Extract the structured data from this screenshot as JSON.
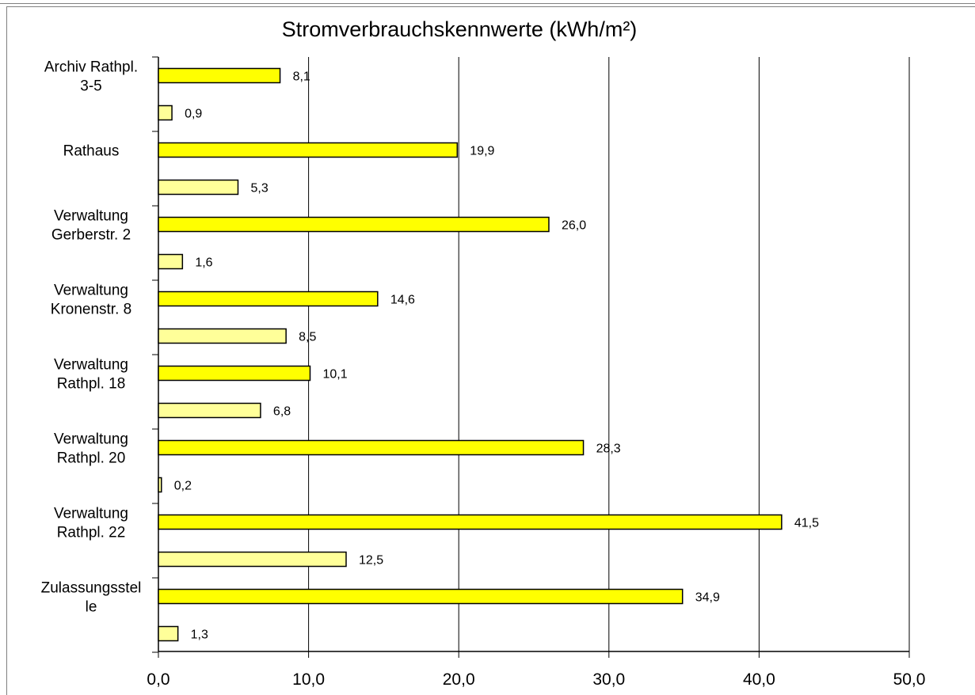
{
  "chart_data": {
    "type": "bar",
    "orientation": "horizontal",
    "title": "Stromverbrauchskennwerte (kWh/m²)",
    "xlim": [
      0,
      50
    ],
    "xticks": [
      "0,0",
      "10,0",
      "20,0",
      "30,0",
      "40,0",
      "50,0"
    ],
    "grid": "vertical",
    "legend": "none",
    "categories": [
      [
        "Archiv Rathpl.",
        "3-5"
      ],
      [
        "Rathaus"
      ],
      [
        "Verwaltung",
        "Gerberstr. 2"
      ],
      [
        "Verwaltung",
        "Kronenstr. 8"
      ],
      [
        "Verwaltung",
        "Rathpl. 18"
      ],
      [
        "Verwaltung",
        "Rathpl. 20"
      ],
      [
        "Verwaltung",
        "Rathpl. 22"
      ],
      [
        "Zulassungsstel",
        "le"
      ]
    ],
    "series": [
      {
        "color": "#ffff00",
        "values": [
          8.1,
          19.9,
          26.0,
          14.6,
          10.1,
          28.3,
          41.5,
          34.9
        ],
        "labels": [
          "8,1",
          "19,9",
          "26,0",
          "14,6",
          "10,1",
          "28,3",
          "41,5",
          "34,9"
        ]
      },
      {
        "color": "#ffff99",
        "values": [
          0.9,
          5.3,
          1.6,
          8.5,
          6.8,
          0.2,
          12.5,
          1.3
        ],
        "labels": [
          "0,9",
          "5,3",
          "1,6",
          "8,5",
          "6,8",
          "0,2",
          "12,5",
          "1,3"
        ]
      }
    ]
  }
}
